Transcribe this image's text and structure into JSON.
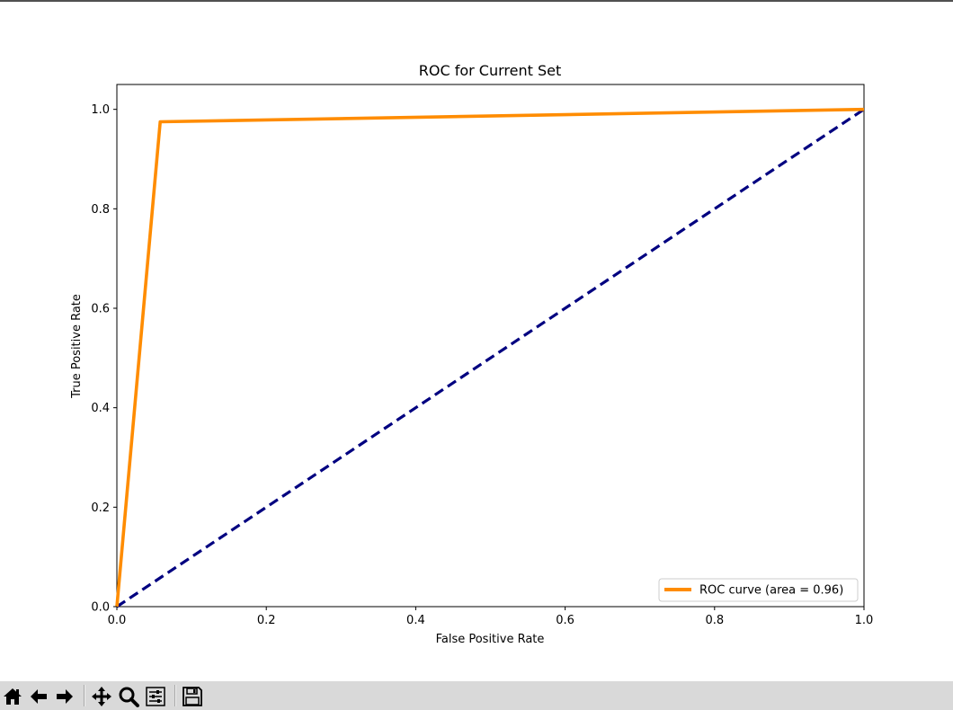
{
  "chart_data": {
    "type": "line",
    "title": "ROC for Current Set",
    "xlabel": "False Positive Rate",
    "ylabel": "True Positive Rate",
    "xlim": [
      0.0,
      1.0
    ],
    "ylim": [
      0.0,
      1.05
    ],
    "xticks": [
      0.0,
      0.2,
      0.4,
      0.6,
      0.8,
      1.0
    ],
    "xtick_labels": [
      "0.0",
      "0.2",
      "0.4",
      "0.6",
      "0.8",
      "1.0"
    ],
    "yticks": [
      0.0,
      0.2,
      0.4,
      0.6,
      0.8,
      1.0
    ],
    "ytick_labels": [
      "0.0",
      "0.2",
      "0.4",
      "0.6",
      "0.8",
      "1.0"
    ],
    "grid": false,
    "legend_position": "lower-right",
    "series": [
      {
        "name": "ROC curve (area = 0.96)",
        "x": [
          0.0,
          0.058,
          1.0
        ],
        "y": [
          0.0,
          0.975,
          1.0
        ],
        "color": "#ff8c00",
        "style": "solid"
      },
      {
        "x": [
          0.0,
          1.0
        ],
        "y": [
          0.0,
          1.0
        ],
        "color": "#000080",
        "style": "dashed"
      }
    ]
  },
  "toolbar": {
    "buttons": [
      {
        "icon": "home-icon"
      },
      {
        "icon": "back-arrow-icon"
      },
      {
        "icon": "forward-arrow-icon"
      },
      {
        "icon": "pan-icon"
      },
      {
        "icon": "zoom-icon"
      },
      {
        "icon": "configure-subplots-icon"
      },
      {
        "icon": "save-icon"
      }
    ],
    "background": "#d9d9d9"
  }
}
